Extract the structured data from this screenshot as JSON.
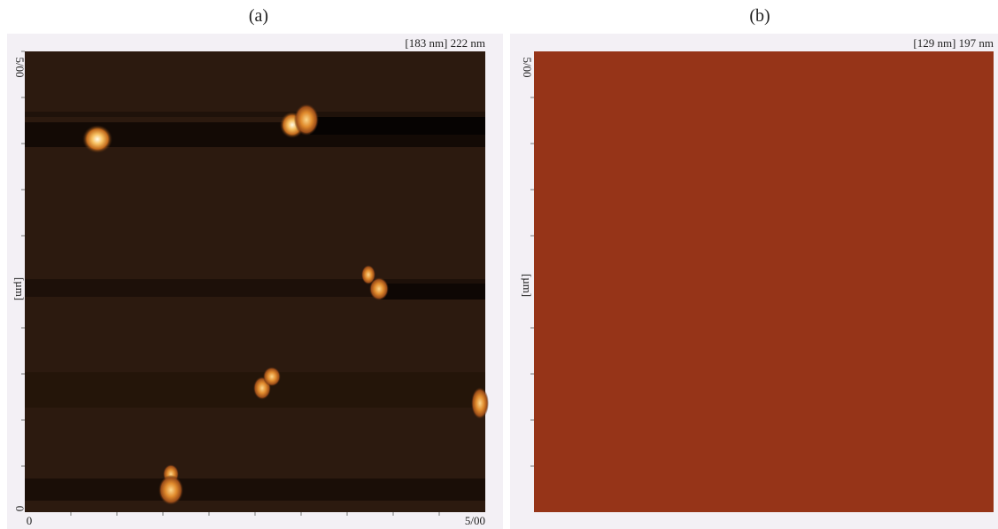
{
  "panels": [
    {
      "caption": "(a)",
      "header": "[183 nm] 222 nm",
      "y_axis": {
        "top": "5/00",
        "bottom": "0",
        "label": "[µm]"
      },
      "x_axis": {
        "left": "0",
        "right": "5/00"
      }
    },
    {
      "caption": "(b)",
      "header": "[129 nm] 197 nm",
      "y_axis": {
        "top": "5/00",
        "label": "[µm]"
      }
    }
  ]
}
